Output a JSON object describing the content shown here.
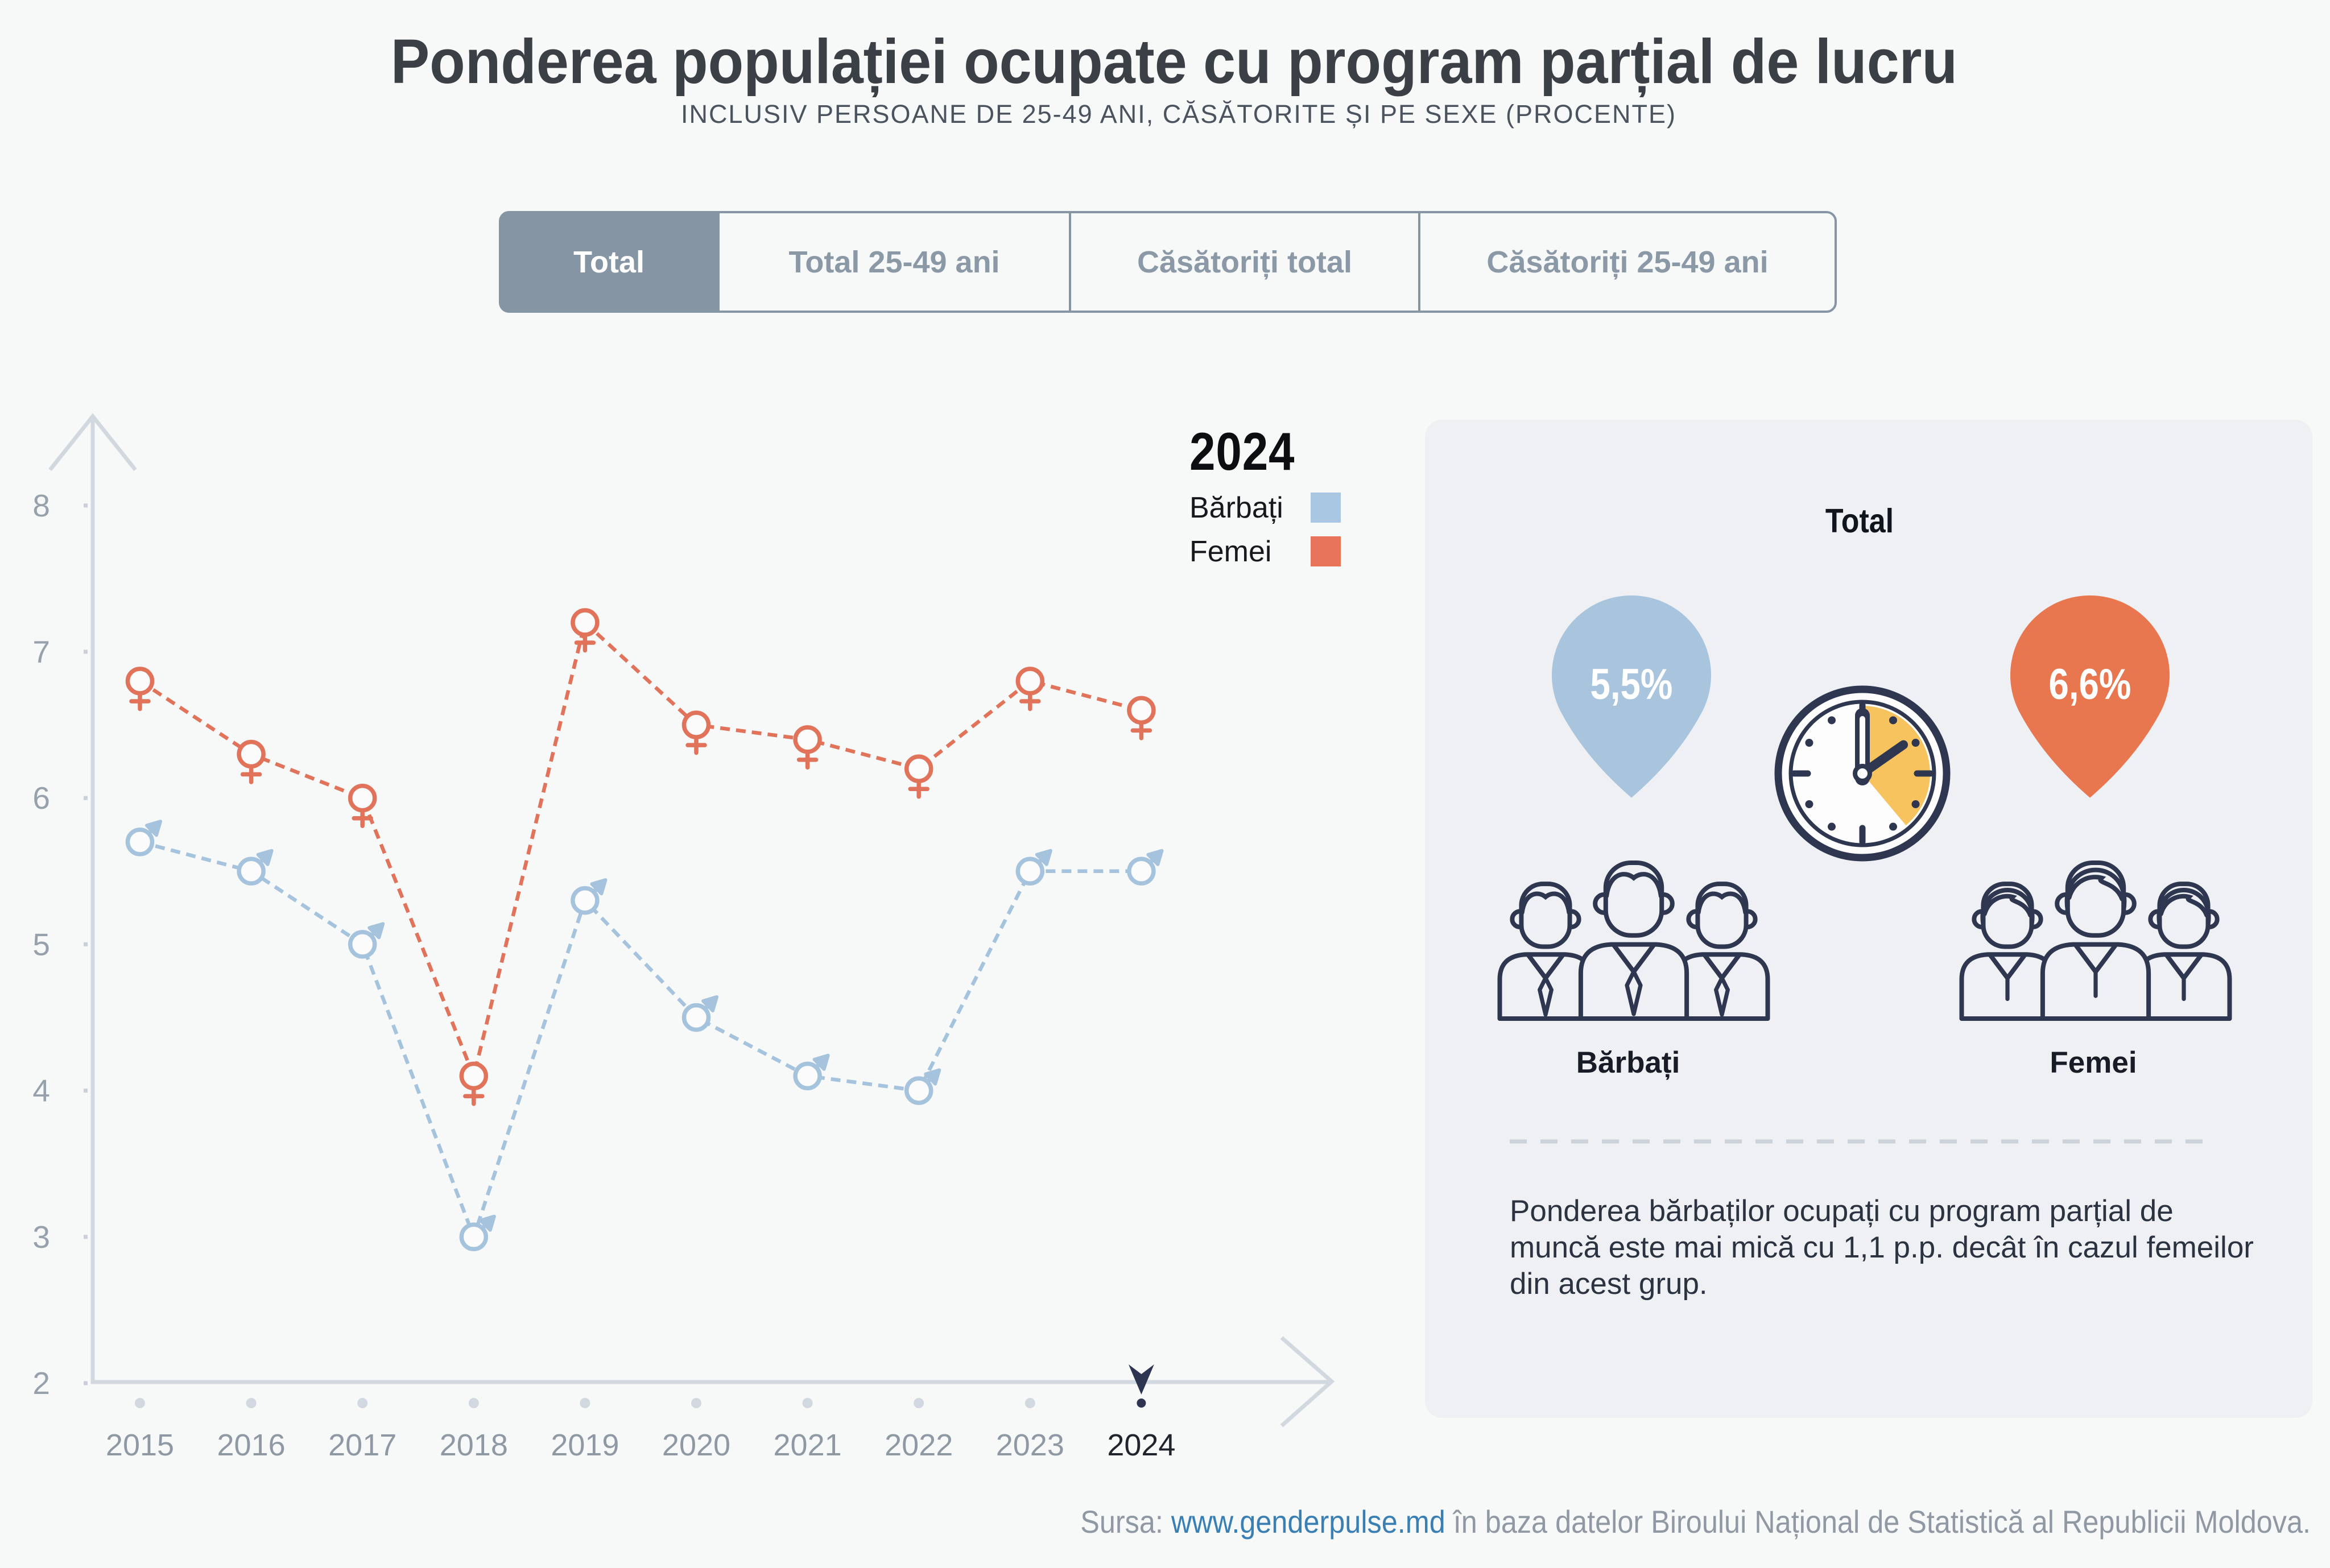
{
  "header": {
    "title": "Ponderea populației ocupate cu program parțial de lucru",
    "subtitle": "INCLUSIV PERSOANE DE 25-49 ANI, CĂSĂTORITE ȘI PE SEXE (PROCENTE)"
  },
  "tabs": [
    {
      "label": "Total",
      "active": true
    },
    {
      "label": "Total 25-49 ani",
      "active": false
    },
    {
      "label": "Căsătoriți total",
      "active": false
    },
    {
      "label": "Căsătoriți 25-49 ani",
      "active": false
    }
  ],
  "legend": {
    "year": "2024",
    "items": [
      {
        "label": "Bărbați",
        "color": "#a9c6e2"
      },
      {
        "label": "Femei",
        "color": "#e8745b"
      }
    ]
  },
  "chart_data": {
    "type": "line",
    "title": "Ponderea populației ocupate cu program parțial de lucru",
    "categories": [
      2015,
      2016,
      2017,
      2018,
      2019,
      2020,
      2021,
      2022,
      2023,
      2024
    ],
    "series": [
      {
        "name": "Bărbați",
        "marker": "male",
        "color": "#a6c3de",
        "values": [
          5.7,
          5.5,
          5.0,
          3.0,
          5.3,
          4.5,
          4.1,
          4.0,
          5.5,
          5.5
        ]
      },
      {
        "name": "Femei",
        "marker": "female",
        "color": "#e0735a",
        "values": [
          6.8,
          6.3,
          6.0,
          4.1,
          7.2,
          6.5,
          6.4,
          6.2,
          6.8,
          6.6
        ]
      }
    ],
    "ylim": [
      2,
      8
    ],
    "yticks": [
      2,
      3,
      4,
      5,
      6,
      7,
      8
    ],
    "selected_category": 2024,
    "grid": false,
    "line_style": "dashed",
    "legend_position": "top-right"
  },
  "panel": {
    "title": "Total",
    "male": {
      "value": "5,5%",
      "label": "Bărbați",
      "pin_color": "#a9c4dd"
    },
    "female": {
      "value": "6,6%",
      "label": "Femei",
      "pin_color": "#e8764f"
    },
    "note": "Ponderea bărbaților ocupați cu program parțial de\nmuncă este mai mică cu 1,1 p.p. decât în cazul femeilor\ndin acest grup."
  },
  "footer": {
    "prefix": "Sursa: ",
    "link": "www.genderpulse.md",
    "suffix": " în baza datelor Biroului Național de Statistică al Republicii Moldova."
  },
  "colors": {
    "male": "#a6c3de",
    "female": "#e0735a",
    "axis": "#d2d8df",
    "tick_label": "#97a1ab",
    "selected_tick_label": "#20242c",
    "cursor": "#2d3550",
    "clock_navy": "#2e3650",
    "clock_yellow": "#f6c35e",
    "tab_slate": "#8695a4"
  }
}
